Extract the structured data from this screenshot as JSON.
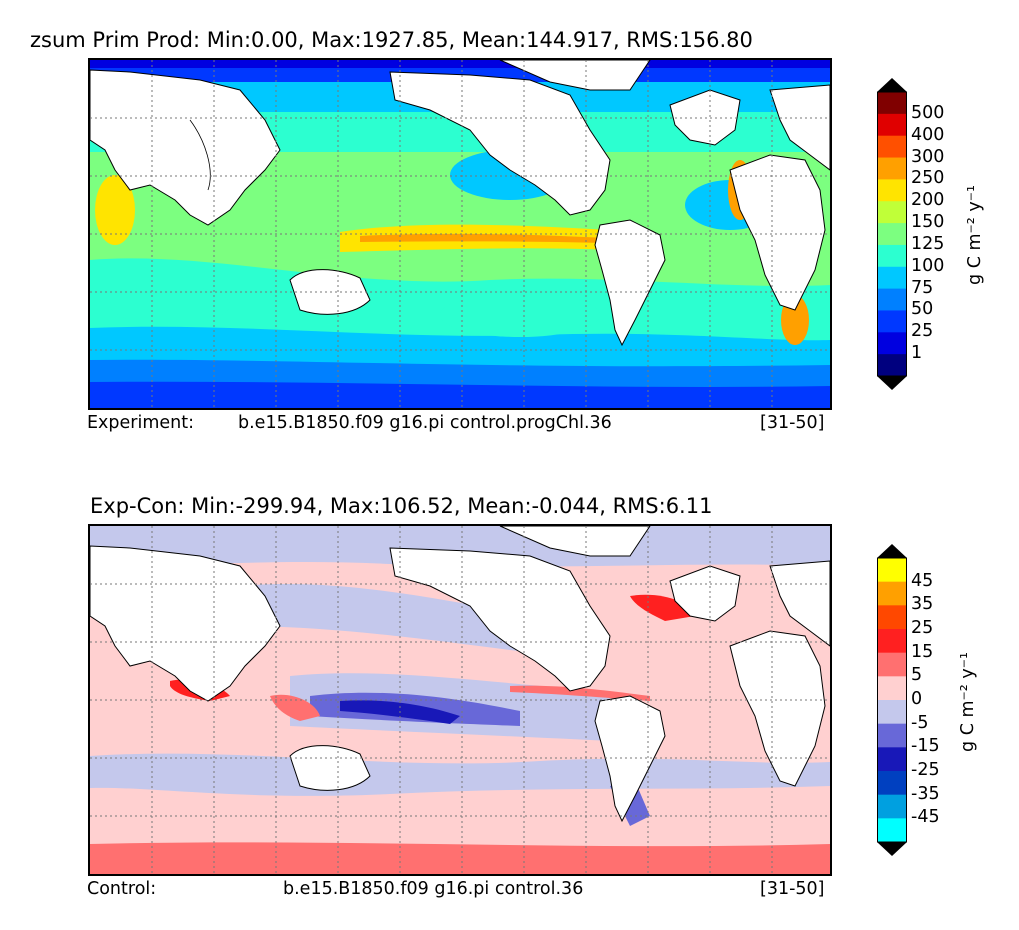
{
  "panel_top": {
    "title": "zsum Prim Prod: Min:0.00, Max:1927.85, Mean:144.917, RMS:156.80",
    "footer_label": "Experiment:",
    "footer_case": "b.e15.B1850.f09 g16.pi control.progChl.36",
    "footer_years": "[31-50]",
    "units": "g C m⁻² y⁻¹",
    "colorbar_levels": [
      "1",
      "25",
      "50",
      "75",
      "100",
      "125",
      "150",
      "200",
      "250",
      "300",
      "400",
      "500"
    ],
    "colorbar_colors": [
      "#00007f",
      "#0000e0",
      "#0038ff",
      "#0080ff",
      "#00c8ff",
      "#2cffd0",
      "#7cff80",
      "#c0ff38",
      "#ffe400",
      "#ffa000",
      "#ff5000",
      "#e00000",
      "#800000"
    ],
    "over_color": "#000000",
    "under_color": "#000000"
  },
  "panel_bottom": {
    "title": "Exp-Con: Min:-299.94, Max:106.52, Mean:-0.044, RMS:6.11",
    "footer_label": "Control:",
    "footer_case": "b.e15.B1850.f09 g16.pi control.36",
    "footer_years": "[31-50]",
    "units": "g C m⁻² y⁻¹",
    "colorbar_levels": [
      "-45",
      "-35",
      "-25",
      "-15",
      "-5",
      "0",
      "5",
      "15",
      "25",
      "35",
      "45"
    ],
    "colorbar_colors": [
      "#00ffff",
      "#00a0e0",
      "#0040c0",
      "#1818b8",
      "#6868d8",
      "#c4c8ec",
      "#ffd0d0",
      "#ff7070",
      "#ff2020",
      "#ff4800",
      "#ffa000",
      "#ffff00"
    ],
    "over_color": "#000000",
    "under_color": "#000000"
  }
}
